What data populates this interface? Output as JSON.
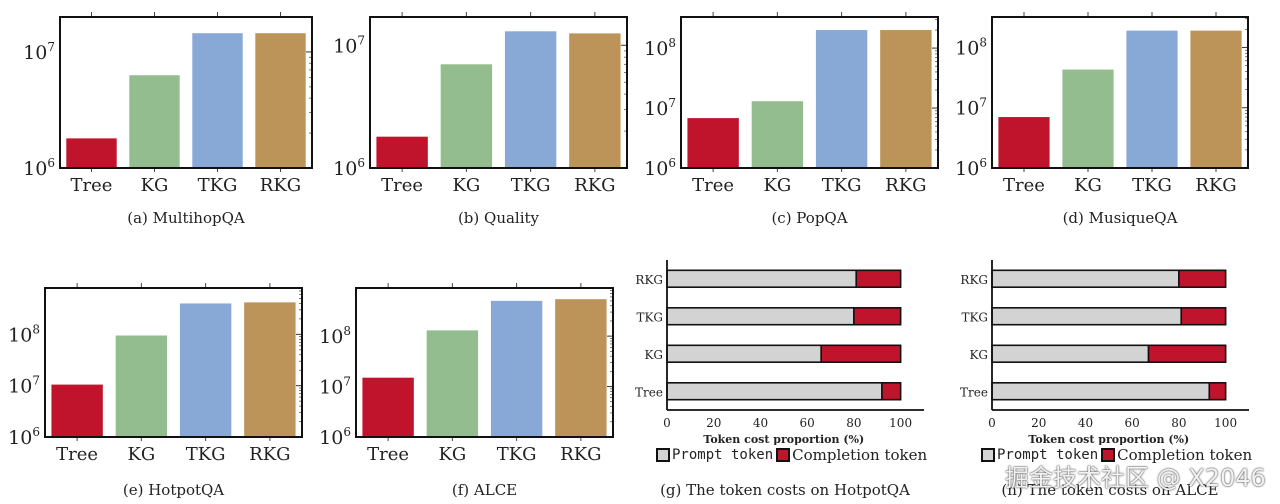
{
  "colors": {
    "Tree": "#c0142c",
    "KG": "#93bd8e",
    "TKG": "#88a9d6",
    "RKG": "#bc9358",
    "prompt": "#d3d3d3",
    "completion": "#c0142c"
  },
  "chart_data": [
    {
      "id": "a",
      "type": "bar",
      "title": "(a) MultihopQA",
      "yscale": "log",
      "categories": [
        "Tree",
        "KG",
        "TKG",
        "RKG"
      ],
      "values": [
        1800000,
        6300000,
        14500000,
        14500000
      ],
      "ylim": [
        1000000,
        20000000
      ],
      "yticks": [
        6,
        7
      ],
      "xlabel": "",
      "ylabel": ""
    },
    {
      "id": "b",
      "type": "bar",
      "title": "(b) Quality",
      "yscale": "log",
      "categories": [
        "Tree",
        "KG",
        "TKG",
        "RKG"
      ],
      "values": [
        1800000,
        7000000,
        13000000,
        12500000
      ],
      "ylim": [
        1000000,
        17000000
      ],
      "yticks": [
        6,
        7
      ],
      "xlabel": "",
      "ylabel": ""
    },
    {
      "id": "c",
      "type": "bar",
      "title": "(c) PopQA",
      "yscale": "log",
      "categories": [
        "Tree",
        "KG",
        "TKG",
        "RKG"
      ],
      "values": [
        6800000,
        13000000,
        200000000,
        200000000
      ],
      "ylim": [
        1000000,
        330000000
      ],
      "yticks": [
        6,
        7,
        8
      ],
      "xlabel": "",
      "ylabel": ""
    },
    {
      "id": "d",
      "type": "bar",
      "title": "(d) MusiqueQA",
      "yscale": "log",
      "categories": [
        "Tree",
        "KG",
        "TKG",
        "RKG"
      ],
      "values": [
        7000000,
        43000000,
        190000000,
        190000000
      ],
      "ylim": [
        1000000,
        320000000
      ],
      "yticks": [
        6,
        7,
        8
      ],
      "xlabel": "",
      "ylabel": ""
    },
    {
      "id": "e",
      "type": "bar",
      "title": "(e) HotpotQA",
      "yscale": "log",
      "categories": [
        "Tree",
        "KG",
        "TKG",
        "RKG"
      ],
      "values": [
        10500000,
        95000000,
        400000000,
        420000000
      ],
      "ylim": [
        1000000,
        800000000
      ],
      "yticks": [
        6,
        7,
        8
      ],
      "xlabel": "",
      "ylabel": ""
    },
    {
      "id": "f",
      "type": "bar",
      "title": "(f) ALCE",
      "yscale": "log",
      "categories": [
        "Tree",
        "KG",
        "TKG",
        "RKG"
      ],
      "values": [
        15000000,
        130000000,
        500000000,
        540000000
      ],
      "ylim": [
        1000000,
        900000000
      ],
      "yticks": [
        6,
        7,
        8
      ],
      "xlabel": "",
      "ylabel": ""
    },
    {
      "id": "g",
      "type": "bar",
      "orientation": "horizontal",
      "stacked": true,
      "title": "(g) The token costs on HotpotQA",
      "categories": [
        "Tree",
        "KG",
        "TKG",
        "RKG"
      ],
      "series": [
        {
          "name": "Prompt token",
          "values": [
            92,
            66,
            80,
            81
          ]
        },
        {
          "name": "Completion token",
          "values": [
            8,
            34,
            20,
            19
          ]
        }
      ],
      "xlim": [
        0,
        110
      ],
      "xticks": [
        0,
        20,
        40,
        60,
        80,
        100
      ],
      "xlabel": "Token cost proportion (%)",
      "ylabel": "",
      "legend": "bottom"
    },
    {
      "id": "h",
      "type": "bar",
      "orientation": "horizontal",
      "stacked": true,
      "title": "(h) The token costs on ALCE",
      "categories": [
        "Tree",
        "KG",
        "TKG",
        "RKG"
      ],
      "series": [
        {
          "name": "Prompt token",
          "values": [
            93,
            67,
            81,
            80
          ]
        },
        {
          "name": "Completion token",
          "values": [
            7,
            33,
            19,
            20
          ]
        }
      ],
      "xlim": [
        0,
        110
      ],
      "xticks": [
        0,
        20,
        40,
        60,
        80,
        100
      ],
      "xlabel": "Token cost proportion (%)",
      "ylabel": "",
      "legend": "bottom"
    }
  ],
  "watermark": "掘金技术社区 @ X2046"
}
